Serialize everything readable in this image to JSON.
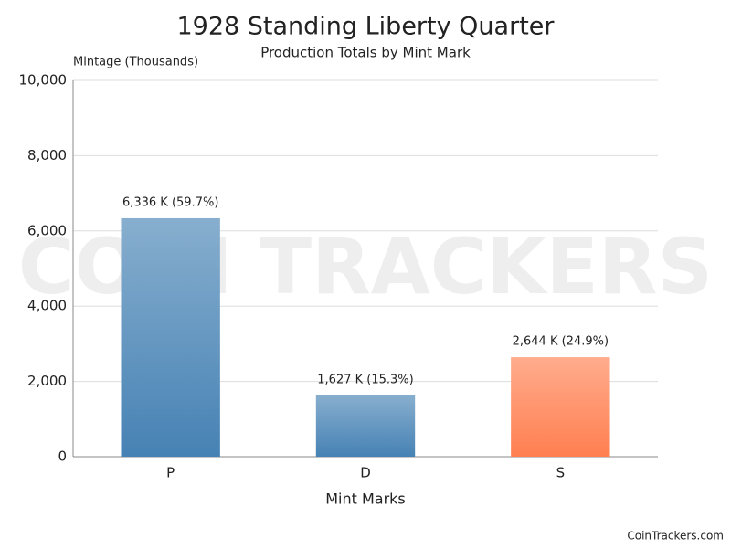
{
  "chart_data": {
    "type": "bar",
    "title": "1928 Standing Liberty Quarter",
    "subtitle": "Production Totals by Mint Mark",
    "y_axis_label": "Mintage (Thousands)",
    "x_axis_label": "Mint Marks",
    "categories": [
      "P",
      "D",
      "S"
    ],
    "values": [
      6336,
      1627,
      2644
    ],
    "value_labels": [
      "6,336 K (59.7%)",
      "1,627 K (15.3%)",
      "2,644 K (24.9%)"
    ],
    "colors": [
      "#4682b4",
      "#4682b4",
      "#ff7f50"
    ],
    "ylim": [
      0,
      10000
    ],
    "yticks": [
      0,
      {
        "value": 2000,
        "label": "2,000"
      },
      {
        "value": 4000,
        "label": "4,000"
      },
      {
        "value": 6000,
        "label": "6,000"
      },
      {
        "value": 8000,
        "label": "8,000"
      },
      {
        "value": 10000,
        "label": "10,000"
      }
    ],
    "grid": true,
    "watermark": "COIN TRACKERS",
    "footer": "CoinTrackers.com"
  }
}
